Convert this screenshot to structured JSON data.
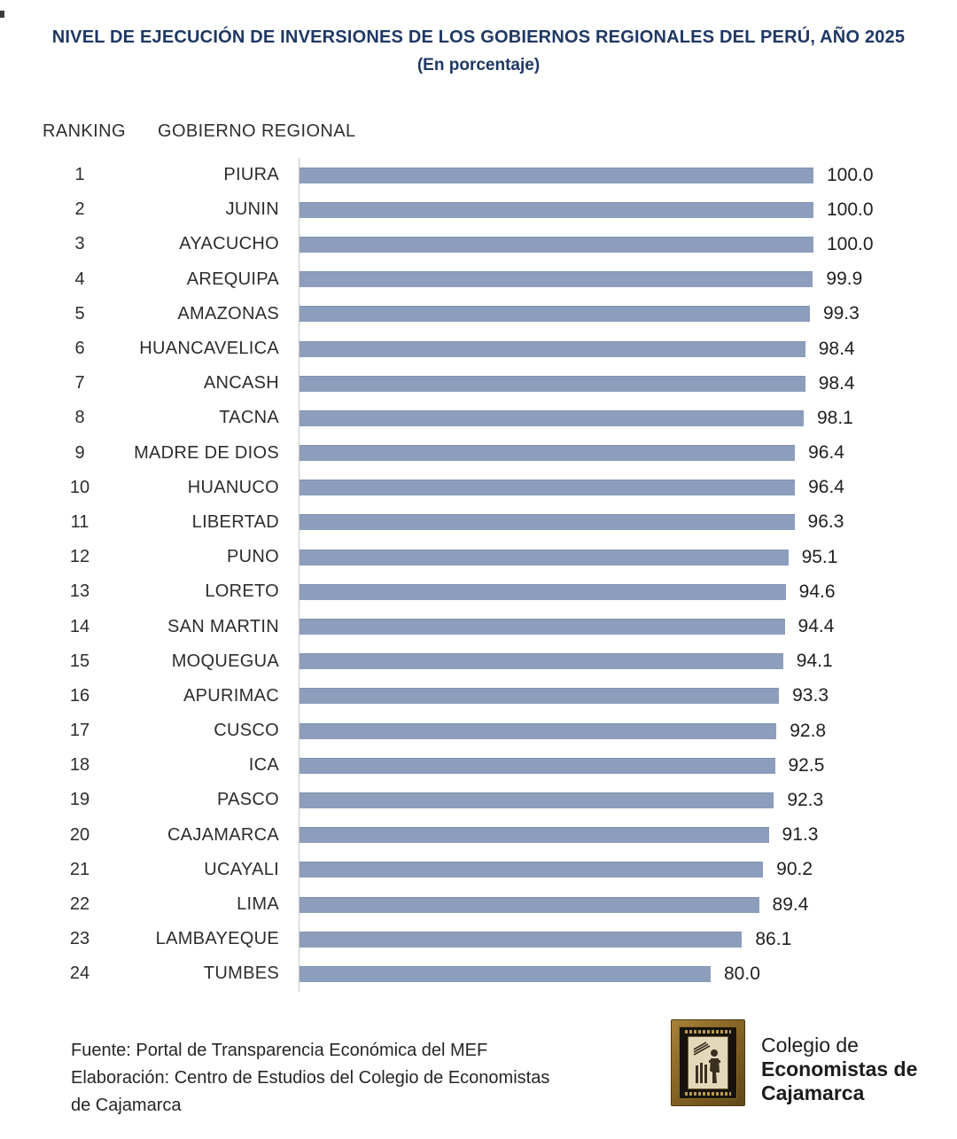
{
  "title": "NIVEL DE EJECUCIÓN DE INVERSIONES DE LOS GOBIERNOS REGIONALES DEL PERÚ, AÑO 2025",
  "subtitle": "(En porcentaje)",
  "columns": {
    "ranking": "RANKING",
    "region": "GOBIERNO REGIONAL"
  },
  "chart_data": {
    "type": "bar",
    "orientation": "horizontal",
    "title": "NIVEL DE EJECUCIÓN DE INVERSIONES DE LOS GOBIERNOS REGIONALES DEL PERÚ, AÑO 2025",
    "subtitle": "(En porcentaje)",
    "xlabel": "",
    "ylabel": "GOBIERNO REGIONAL",
    "xlim": [
      0,
      100
    ],
    "grid": false,
    "value_decimals": 1,
    "ranks": [
      1,
      2,
      3,
      4,
      5,
      6,
      7,
      8,
      9,
      10,
      11,
      12,
      13,
      14,
      15,
      16,
      17,
      18,
      19,
      20,
      21,
      22,
      23,
      24
    ],
    "categories": [
      "PIURA",
      "JUNIN",
      "AYACUCHO",
      "AREQUIPA",
      "AMAZONAS",
      "HUANCAVELICA",
      "ANCASH",
      "TACNA",
      "MADRE DE DIOS",
      "HUANUCO",
      "LIBERTAD",
      "PUNO",
      "LORETO",
      "SAN MARTIN",
      "MOQUEGUA",
      "APURIMAC",
      "CUSCO",
      "ICA",
      "PASCO",
      "CAJAMARCA",
      "UCAYALI",
      "LIMA",
      "LAMBAYEQUE",
      "TUMBES"
    ],
    "values": [
      100.0,
      100.0,
      100.0,
      99.9,
      99.3,
      98.4,
      98.4,
      98.1,
      96.4,
      96.4,
      96.3,
      95.1,
      94.6,
      94.4,
      94.1,
      93.3,
      92.8,
      92.5,
      92.3,
      91.3,
      90.2,
      89.4,
      86.1,
      80.0
    ]
  },
  "footer": {
    "line1": "Fuente: Portal de Transparencia Económica del MEF",
    "line2": "Elaboración: Centro de Estudios del Colegio de Economistas",
    "line3": "de Cajamarca"
  },
  "logo": {
    "line1": "Colegio de",
    "line2": "Economistas de",
    "line3": "Cajamarca"
  },
  "colors": {
    "bar": "#8C9EBC",
    "bar_edge": "#7E92B0",
    "title": "#1F3864",
    "axis_line": "#C6C6C6",
    "text": "#2D2D2D",
    "value_text": "#1F1F1F"
  }
}
